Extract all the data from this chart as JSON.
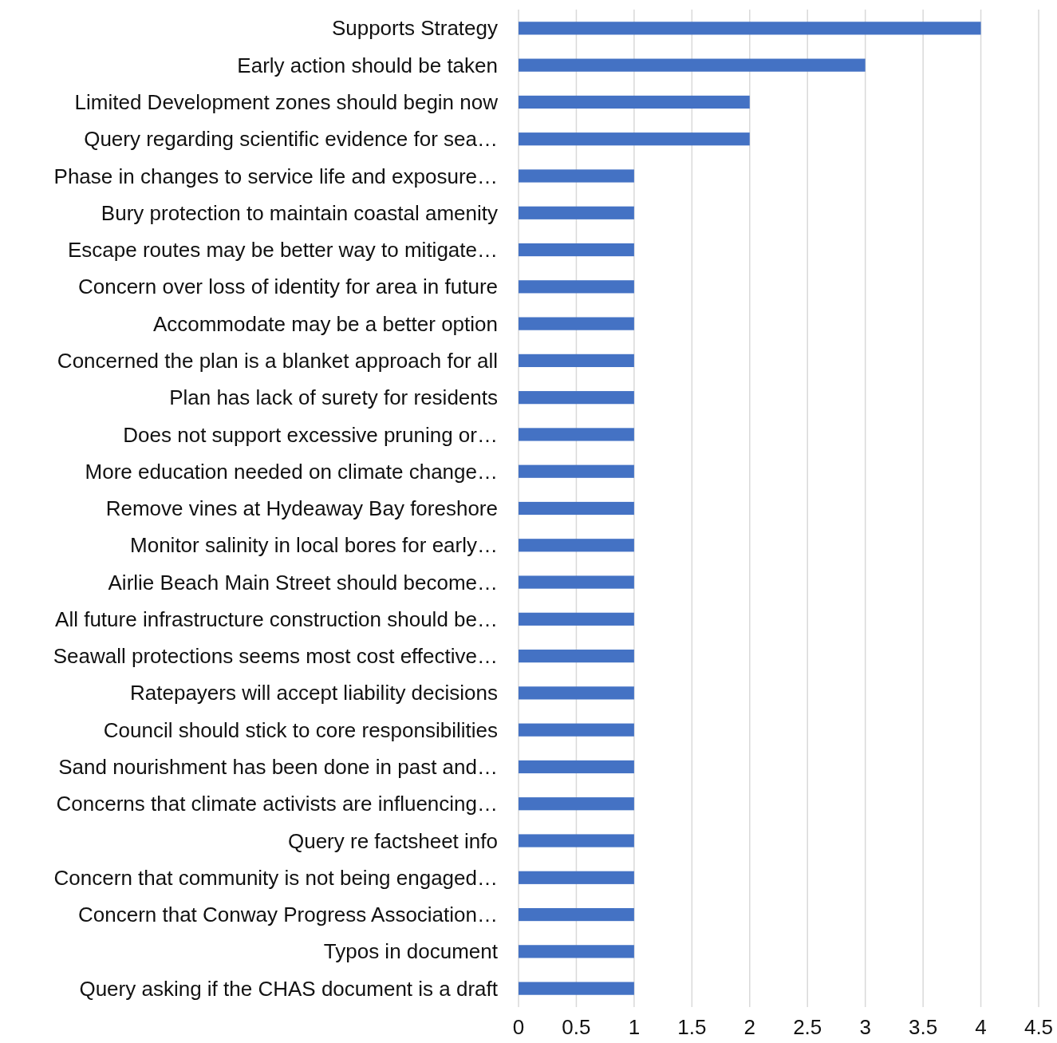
{
  "chart_data": {
    "type": "bar",
    "orientation": "horizontal",
    "categories": [
      "Supports Strategy",
      "Early action should be taken",
      "Limited Development zones should begin now",
      "Query regarding scientific evidence for sea…",
      "Phase in changes to service life and exposure…",
      "Bury protection to maintain coastal amenity",
      "Escape routes may be better way to mitigate…",
      "Concern over loss of identity for area in future",
      "Accommodate may be a better option",
      "Concerned the plan is a blanket approach for all",
      "Plan has lack of surety for residents",
      "Does not support excessive pruning or…",
      "More education needed on climate change…",
      "Remove vines at Hydeaway Bay foreshore",
      "Monitor salinity in local bores for early…",
      "Airlie Beach Main Street should become…",
      "All future infrastructure construction should be…",
      "Seawall protections seems most cost effective…",
      "Ratepayers will accept liability decisions",
      "Council should stick to core responsibilities",
      "Sand nourishment has been done in past and…",
      "Concerns that climate activists are influencing…",
      "Query re factsheet info",
      "Concern that community is not being engaged…",
      "Concern that Conway Progress Association…",
      "Typos in document",
      "Query asking if the CHAS document is a draft"
    ],
    "values": [
      4,
      3,
      2,
      2,
      1,
      1,
      1,
      1,
      1,
      1,
      1,
      1,
      1,
      1,
      1,
      1,
      1,
      1,
      1,
      1,
      1,
      1,
      1,
      1,
      1,
      1,
      1
    ],
    "color": "#4472c4",
    "xlim": [
      0,
      4.5
    ],
    "xticks": [
      0,
      0.5,
      1,
      1.5,
      2,
      2.5,
      3,
      3.5,
      4,
      4.5
    ],
    "grid": "x"
  }
}
